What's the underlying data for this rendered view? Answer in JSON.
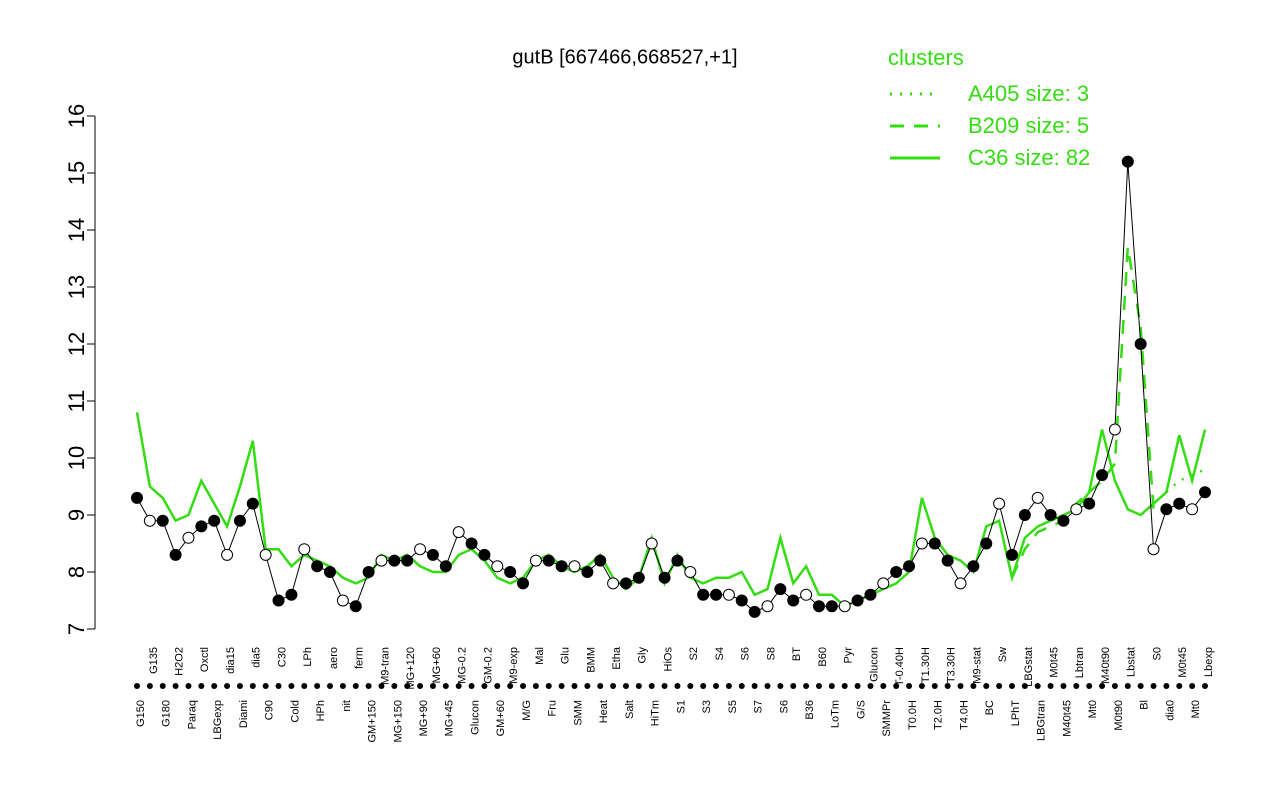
{
  "chart_data": {
    "type": "line",
    "title": "gutB [667466,668527,+1]",
    "legend_title": "clusters",
    "categories": [
      "G150",
      "G135",
      "G180",
      "H2O2",
      "Paraq",
      "Oxctl",
      "LBGexp",
      "dia15",
      "Diami",
      "dia5",
      "C90",
      "C30",
      "Cold",
      "LPh",
      "HPh",
      "aero",
      "nit",
      "ferm",
      "GM+150",
      "M9-tran",
      "MG+150",
      "MG+120",
      "MG+90",
      "MG+60",
      "MG+45",
      "MG-0.2",
      "Glucon",
      "GM-0.2",
      "GM+60",
      "M9-exp",
      "M/G",
      "Mal",
      "Fru",
      "Glu",
      "SMM",
      "BMM",
      "Heat",
      "Etha",
      "Salt",
      "Gly",
      "HiTm",
      "HiOs",
      "S1",
      "S2",
      "S3",
      "S4",
      "S5",
      "S6",
      "S7",
      "S8",
      "S6",
      "BT",
      "B36",
      "B60",
      "LoTm",
      "Pyr",
      "G/S",
      "Glucon",
      "SMMPr",
      "T-0.40H",
      "T0.0H",
      "T1.30H",
      "T2.0H",
      "T3.30H",
      "T4.0H",
      "M9-stat",
      "BC",
      "Sw",
      "LPhT",
      "LBGstat",
      "LBGtran",
      "M0t45",
      "M40t45",
      "Lbtran",
      "Mt0",
      "M40t90",
      "M0t90",
      "Lbstat",
      "Bl",
      "S0",
      "dia0",
      "M0t45",
      "Mt0",
      "Lbexp"
    ],
    "values": [
      9.3,
      8.9,
      8.9,
      8.3,
      8.6,
      8.8,
      8.9,
      8.3,
      8.9,
      9.2,
      8.3,
      7.5,
      7.6,
      8.4,
      8.1,
      8.0,
      7.5,
      7.4,
      8.0,
      8.2,
      8.2,
      8.2,
      8.4,
      8.3,
      8.1,
      8.7,
      8.5,
      8.3,
      8.1,
      8.0,
      7.8,
      8.2,
      8.2,
      8.1,
      8.1,
      8.0,
      8.2,
      7.8,
      7.8,
      7.9,
      8.5,
      7.9,
      8.2,
      8.0,
      7.6,
      7.6,
      7.6,
      7.5,
      7.3,
      7.4,
      7.7,
      7.5,
      7.6,
      7.4,
      7.4,
      7.4,
      7.5,
      7.6,
      7.8,
      8.0,
      8.1,
      8.5,
      8.5,
      8.2,
      7.8,
      8.1,
      8.5,
      9.2,
      8.3,
      9.0,
      9.3,
      9.0,
      8.9,
      9.1,
      9.2,
      9.7,
      10.5,
      15.2,
      12.0,
      8.4,
      9.1,
      9.2,
      9.1,
      9.4
    ],
    "series": [
      {
        "name": "A405 size: 3",
        "color": "#33dd11",
        "dash": "dotted",
        "values": [
          null,
          null,
          null,
          null,
          null,
          null,
          null,
          null,
          null,
          null,
          null,
          null,
          null,
          null,
          null,
          null,
          null,
          null,
          null,
          null,
          null,
          null,
          null,
          null,
          null,
          null,
          null,
          null,
          null,
          null,
          null,
          null,
          null,
          null,
          null,
          null,
          null,
          null,
          null,
          null,
          null,
          null,
          null,
          null,
          null,
          null,
          null,
          null,
          null,
          null,
          null,
          null,
          null,
          null,
          null,
          null,
          null,
          null,
          null,
          null,
          null,
          null,
          null,
          null,
          null,
          null,
          null,
          null,
          null,
          null,
          null,
          null,
          null,
          null,
          null,
          null,
          null,
          null,
          null,
          null,
          9.4,
          9.6,
          9.7,
          9.8
        ]
      },
      {
        "name": "B209 size: 5",
        "color": "#33dd11",
        "dash": "dashed",
        "values": [
          null,
          null,
          null,
          null,
          null,
          null,
          null,
          null,
          null,
          null,
          null,
          null,
          null,
          null,
          null,
          null,
          null,
          null,
          null,
          null,
          null,
          null,
          null,
          null,
          null,
          null,
          null,
          null,
          null,
          null,
          null,
          null,
          null,
          null,
          null,
          null,
          null,
          null,
          null,
          null,
          null,
          null,
          null,
          null,
          null,
          null,
          null,
          null,
          null,
          null,
          null,
          null,
          null,
          null,
          null,
          null,
          null,
          null,
          null,
          null,
          null,
          null,
          null,
          null,
          null,
          null,
          null,
          null,
          7.9,
          8.4,
          8.7,
          8.8,
          8.9,
          9.2,
          9.4,
          9.6,
          9.9,
          13.7,
          12.3,
          9.1,
          null,
          null,
          null,
          null
        ]
      },
      {
        "name": "C36 size: 82",
        "color": "#33dd11",
        "dash": "solid",
        "values": [
          10.8,
          9.5,
          9.3,
          8.9,
          9.0,
          9.6,
          9.2,
          8.8,
          9.5,
          10.3,
          8.4,
          8.4,
          8.1,
          8.3,
          8.2,
          8.1,
          7.9,
          7.8,
          7.9,
          8.3,
          8.2,
          8.3,
          8.1,
          8.0,
          8.0,
          8.3,
          8.4,
          8.2,
          7.9,
          7.8,
          7.9,
          8.2,
          8.3,
          8.1,
          8.0,
          8.1,
          8.3,
          7.9,
          7.7,
          7.9,
          8.6,
          7.8,
          8.3,
          7.9,
          7.8,
          7.9,
          7.9,
          8.0,
          7.6,
          7.7,
          8.6,
          7.8,
          8.1,
          7.6,
          7.6,
          7.4,
          7.5,
          7.6,
          7.7,
          7.8,
          8.0,
          9.3,
          8.6,
          8.3,
          8.2,
          8.0,
          8.8,
          8.9,
          7.9,
          8.6,
          8.8,
          8.9,
          9.0,
          9.1,
          9.4,
          10.5,
          9.6,
          9.1,
          9.0,
          9.2,
          9.4,
          10.4,
          9.6,
          10.5
        ]
      }
    ],
    "ylim": [
      7,
      16
    ],
    "yticks": [
      7,
      8,
      9,
      10,
      11,
      12,
      13,
      14,
      15,
      16
    ]
  }
}
